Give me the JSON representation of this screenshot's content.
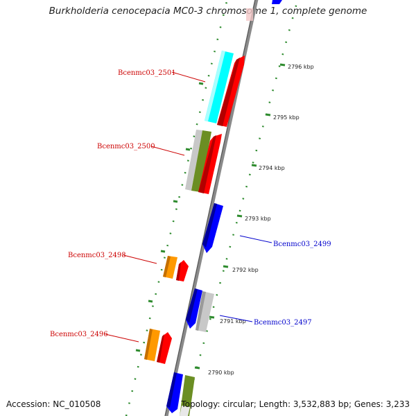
{
  "title": "Burkholderia cenocepacia MC0-3 chromosome 1, complete genome",
  "footer": {
    "accession": "Accession: NC_010508",
    "summary": "Topology: circular; Length: 3,532,883 bp; Genes: 3,233"
  },
  "colors": {
    "backbone": "#8a8a8a",
    "tick": "#2e8b2e",
    "label_red": "#cc0000",
    "label_blue": "#0000cc",
    "cds_red": "#ff0000",
    "cds_cyan": "#00ffff",
    "cds_blue": "#0000ff",
    "cds_orange": "#ff9900",
    "cds_olive": "#6b8e23",
    "cds_gray": "#c8c8c8"
  },
  "tick_labels": [
    "2796 kbp",
    "2795 kbp",
    "2794 kbp",
    "2793 kbp",
    "2792 kbp",
    "2791 kbp",
    "2790 kbp"
  ],
  "gene_labels": {
    "g2501": "Bcenmc03_2501",
    "g2500": "Bcenmc03_2500",
    "g2499": "Bcenmc03_2499",
    "g2498": "Bcenmc03_2498",
    "g2497": "Bcenmc03_2497",
    "g2496": "Bcenmc03_2496"
  }
}
